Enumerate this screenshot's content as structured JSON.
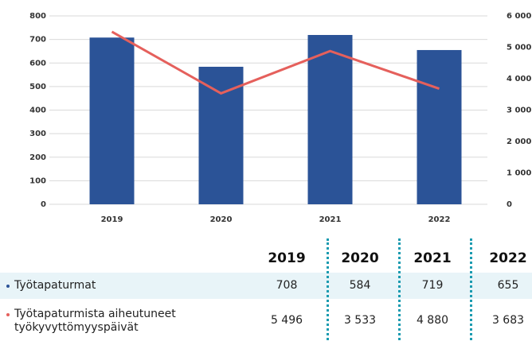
{
  "chart_data": {
    "type": "bar_line",
    "categories": [
      "2019",
      "2020",
      "2021",
      "2022"
    ],
    "series": [
      {
        "name": "Työtapaturmat",
        "color": "#2b5397",
        "values": [
          708,
          584,
          719,
          655
        ]
      },
      {
        "name": "Työtapaturmista aiheutuneet työkyvyttömyyspäivät",
        "color": "#e5605c",
        "axis": "y2",
        "values": [
          5496,
          3533,
          4880,
          3683
        ],
        "value_labels": [
          "5 496",
          "3 533",
          "4 880",
          "3 683"
        ]
      }
    ],
    "ylim": [
      0,
      800
    ],
    "yticks": [
      0,
      100,
      200,
      300,
      400,
      500,
      600,
      700,
      800
    ],
    "y2lim": [
      0,
      6000
    ],
    "y2ticks": [
      0,
      {
        "value": 1000,
        "label": "1 000"
      },
      {
        "value": 2000,
        "label": "2 000"
      },
      {
        "value": 3000,
        "label": "3 000"
      },
      {
        "value": 4000,
        "label": "4 000"
      },
      {
        "value": 5000,
        "label": "5 000"
      },
      {
        "value": 6000,
        "label": "6 000"
      }
    ],
    "grid": true
  }
}
